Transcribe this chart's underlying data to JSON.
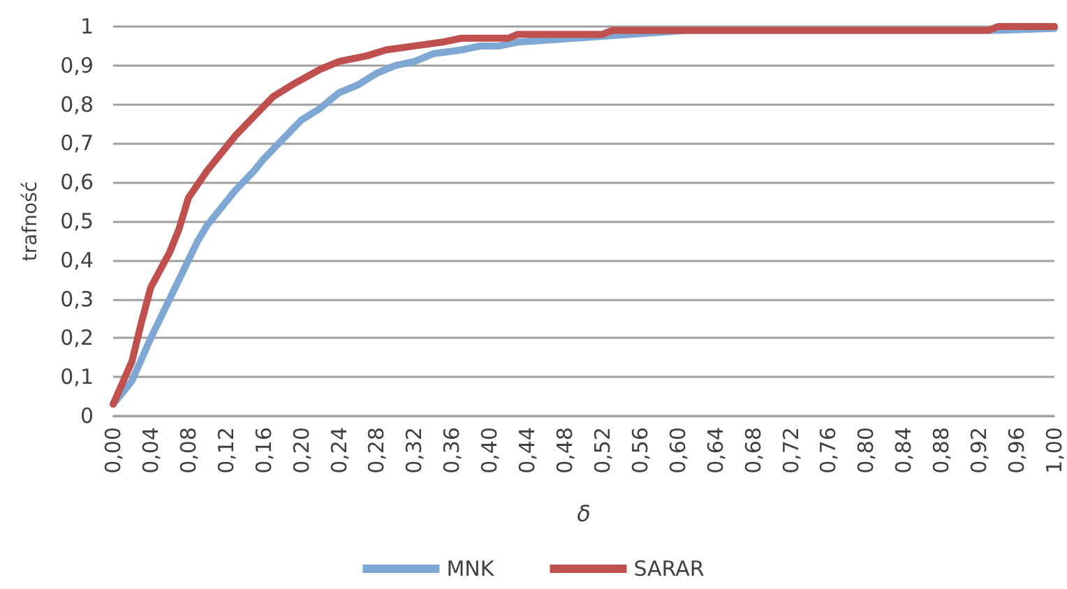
{
  "chart_data": {
    "type": "line",
    "xlabel": "δ",
    "ylabel": "trafność",
    "grid": "y",
    "legend": "bottom",
    "marker": "none",
    "line_style": "solid",
    "xlim": [
      0,
      1
    ],
    "xticks": [
      {
        "value": 0,
        "label": "0,00"
      },
      {
        "value": 0.04,
        "label": "0,04"
      },
      {
        "value": 0.08,
        "label": "0,08"
      },
      {
        "value": 0.12,
        "label": "0,12"
      },
      {
        "value": 0.16,
        "label": "0,16"
      },
      {
        "value": 0.2,
        "label": "0,20"
      },
      {
        "value": 0.24,
        "label": "0,24"
      },
      {
        "value": 0.28,
        "label": "0,28"
      },
      {
        "value": 0.32,
        "label": "0,32"
      },
      {
        "value": 0.36,
        "label": "0,36"
      },
      {
        "value": 0.4,
        "label": "0,40"
      },
      {
        "value": 0.44,
        "label": "0,44"
      },
      {
        "value": 0.48,
        "label": "0,48"
      },
      {
        "value": 0.52,
        "label": "0,52"
      },
      {
        "value": 0.56,
        "label": "0,56"
      },
      {
        "value": 0.6,
        "label": "0,60"
      },
      {
        "value": 0.64,
        "label": "0,64"
      },
      {
        "value": 0.68,
        "label": "0,68"
      },
      {
        "value": 0.72,
        "label": "0,72"
      },
      {
        "value": 0.76,
        "label": "0,76"
      },
      {
        "value": 0.8,
        "label": "0,80"
      },
      {
        "value": 0.84,
        "label": "0,84"
      },
      {
        "value": 0.88,
        "label": "0,88"
      },
      {
        "value": 0.92,
        "label": "0,92"
      },
      {
        "value": 0.96,
        "label": "0,96"
      },
      {
        "value": 1,
        "label": "1,00"
      }
    ],
    "ylim": [
      0,
      1
    ],
    "yticks": [
      0,
      {
        "value": 0.1,
        "label": "0,1"
      },
      {
        "value": 0.2,
        "label": "0,2"
      },
      {
        "value": 0.3,
        "label": "0,3"
      },
      {
        "value": 0.4,
        "label": "0,4"
      },
      {
        "value": 0.5,
        "label": "0,5"
      },
      {
        "value": 0.6,
        "label": "0,6"
      },
      {
        "value": 0.7,
        "label": "0,7"
      },
      {
        "value": 0.8,
        "label": "0,8"
      },
      {
        "value": 0.9,
        "label": "0,9"
      },
      1
    ],
    "series": [
      {
        "name": "MNK",
        "color": "#7fa7d3",
        "x": [
          0,
          0.02,
          0.04,
          0.06,
          0.07,
          0.09,
          0.1,
          0.13,
          0.15,
          0.16,
          0.18,
          0.2,
          0.22,
          0.24,
          0.26,
          0.28,
          0.3,
          0.32,
          0.34,
          0.37,
          0.39,
          0.41,
          0.43,
          0.52,
          0.61,
          0.94,
          1
        ],
        "values": [
          0.03,
          0.09,
          0.2,
          0.3,
          0.35,
          0.45,
          0.49,
          0.58,
          0.63,
          0.66,
          0.71,
          0.76,
          0.79,
          0.83,
          0.85,
          0.88,
          0.9,
          0.91,
          0.93,
          0.94,
          0.95,
          0.95,
          0.96,
          0.975,
          0.99,
          0.99,
          0.995
        ]
      },
      {
        "name": "SARAR",
        "color": "#c0504d",
        "x": [
          0,
          0.02,
          0.03,
          0.04,
          0.06,
          0.07,
          0.08,
          0.1,
          0.13,
          0.15,
          0.17,
          0.19,
          0.22,
          0.24,
          0.27,
          0.29,
          0.32,
          0.35,
          0.37,
          0.42,
          0.43,
          0.52,
          0.53,
          0.93,
          0.94,
          1
        ],
        "values": [
          0.03,
          0.14,
          0.24,
          0.33,
          0.42,
          0.48,
          0.56,
          0.63,
          0.72,
          0.77,
          0.82,
          0.85,
          0.89,
          0.91,
          0.925,
          0.94,
          0.95,
          0.96,
          0.97,
          0.97,
          0.98,
          0.98,
          0.99,
          0.99,
          1,
          1
        ]
      }
    ]
  }
}
